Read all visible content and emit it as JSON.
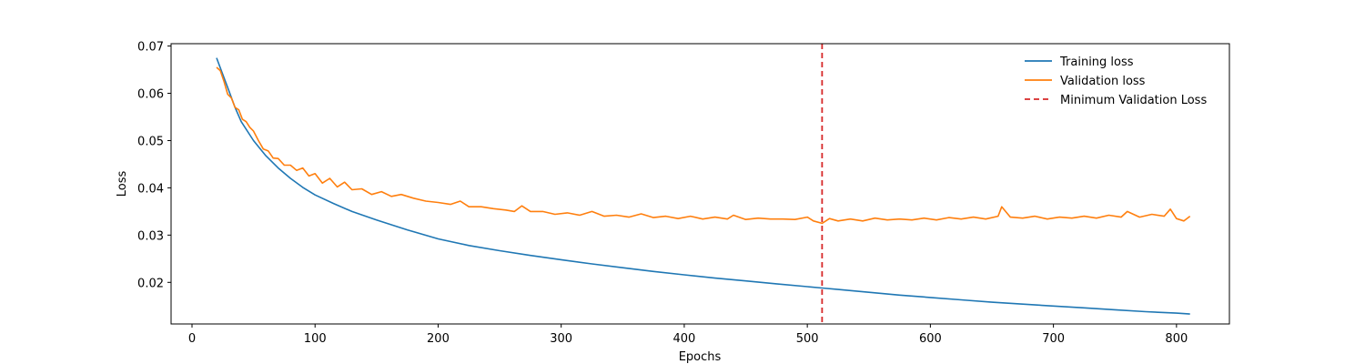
{
  "chart_data": {
    "type": "line",
    "title": "",
    "xlabel": "Epochs",
    "ylabel": "Loss",
    "xlim": [
      -17,
      843
    ],
    "ylim": [
      0.0112,
      0.0705
    ],
    "xticks": [
      0,
      100,
      200,
      300,
      400,
      500,
      600,
      700,
      800
    ],
    "yticks": [
      0.02,
      0.03,
      0.04,
      0.05,
      0.06,
      0.07
    ],
    "xtick_labels": [
      "0",
      "100",
      "200",
      "300",
      "400",
      "500",
      "600",
      "700",
      "800"
    ],
    "ytick_labels": [
      "0.02",
      "0.03",
      "0.04",
      "0.05",
      "0.06",
      "0.07"
    ],
    "grid": false,
    "legend_position": "top-right",
    "series": [
      {
        "name": "Training loss",
        "color": "#1f77b4",
        "x": [
          20,
          25,
          30,
          35,
          40,
          50,
          60,
          70,
          80,
          90,
          100,
          115,
          130,
          150,
          175,
          200,
          225,
          250,
          275,
          300,
          325,
          350,
          375,
          400,
          425,
          450,
          475,
          500,
          512,
          525,
          550,
          575,
          600,
          625,
          650,
          675,
          700,
          725,
          750,
          775,
          800,
          811
        ],
        "y": [
          0.0675,
          0.064,
          0.0605,
          0.057,
          0.054,
          0.05,
          0.0468,
          0.0442,
          0.042,
          0.0401,
          0.0385,
          0.0367,
          0.035,
          0.0332,
          0.0311,
          0.0292,
          0.0278,
          0.0267,
          0.0257,
          0.0248,
          0.0239,
          0.0231,
          0.0223,
          0.0216,
          0.0209,
          0.0203,
          0.0197,
          0.0191,
          0.0188,
          0.0185,
          0.0179,
          0.0173,
          0.0168,
          0.0163,
          0.0158,
          0.0154,
          0.015,
          0.0146,
          0.0142,
          0.0138,
          0.0135,
          0.0133
        ]
      },
      {
        "name": "Validation loss",
        "color": "#ff7f0e",
        "x": [
          20,
          23,
          26,
          29,
          32,
          35,
          38,
          41,
          44,
          47,
          50,
          54,
          58,
          62,
          66,
          70,
          75,
          80,
          85,
          90,
          95,
          100,
          106,
          112,
          118,
          124,
          130,
          138,
          146,
          154,
          162,
          170,
          180,
          190,
          200,
          210,
          218,
          225,
          235,
          245,
          255,
          262,
          268,
          275,
          285,
          295,
          305,
          315,
          325,
          335,
          345,
          355,
          365,
          375,
          385,
          395,
          405,
          415,
          425,
          435,
          440,
          450,
          460,
          470,
          480,
          490,
          500,
          505,
          512,
          518,
          525,
          535,
          545,
          555,
          565,
          575,
          585,
          595,
          605,
          615,
          625,
          635,
          645,
          655,
          658,
          665,
          675,
          685,
          695,
          705,
          715,
          725,
          735,
          745,
          755,
          760,
          770,
          780,
          790,
          795,
          800,
          806,
          811
        ],
        "y": [
          0.0655,
          0.0648,
          0.0625,
          0.0598,
          0.059,
          0.057,
          0.0565,
          0.0545,
          0.054,
          0.0528,
          0.052,
          0.05,
          0.0482,
          0.0478,
          0.0463,
          0.0462,
          0.0448,
          0.0448,
          0.0437,
          0.0442,
          0.0425,
          0.043,
          0.041,
          0.042,
          0.0402,
          0.0412,
          0.0396,
          0.0398,
          0.0386,
          0.0392,
          0.0382,
          0.0386,
          0.0378,
          0.0372,
          0.0369,
          0.0365,
          0.0372,
          0.036,
          0.036,
          0.0356,
          0.0353,
          0.035,
          0.0362,
          0.035,
          0.035,
          0.0344,
          0.0347,
          0.0342,
          0.035,
          0.034,
          0.0342,
          0.0338,
          0.0345,
          0.0337,
          0.034,
          0.0335,
          0.034,
          0.0334,
          0.0338,
          0.0334,
          0.0342,
          0.0333,
          0.0336,
          0.0334,
          0.0334,
          0.0333,
          0.0338,
          0.033,
          0.0325,
          0.0335,
          0.033,
          0.0334,
          0.033,
          0.0336,
          0.0332,
          0.0334,
          0.0332,
          0.0336,
          0.0332,
          0.0337,
          0.0334,
          0.0338,
          0.0334,
          0.034,
          0.036,
          0.0338,
          0.0336,
          0.034,
          0.0334,
          0.0338,
          0.0336,
          0.034,
          0.0336,
          0.0342,
          0.0338,
          0.035,
          0.0338,
          0.0344,
          0.034,
          0.0355,
          0.0335,
          0.033,
          0.034
        ]
      }
    ],
    "vlines": [
      {
        "name": "Minimum Validation Loss",
        "x": 512,
        "color": "#d62728",
        "style": "dashed"
      }
    ]
  }
}
